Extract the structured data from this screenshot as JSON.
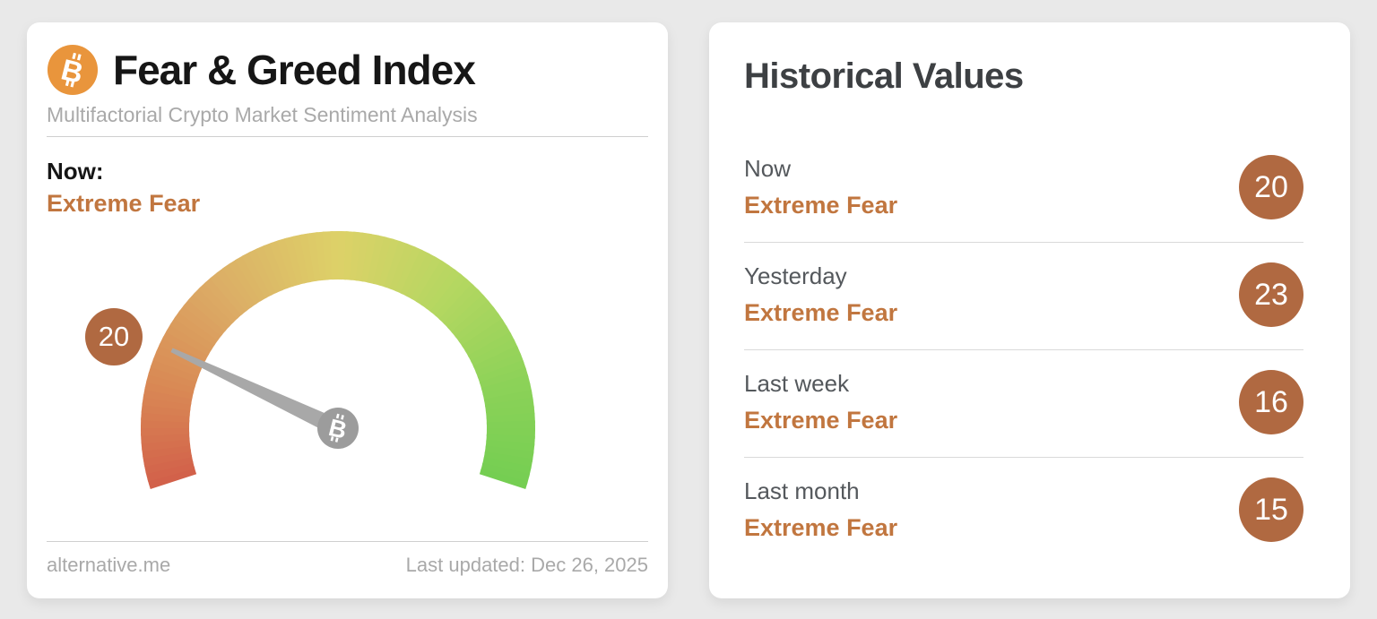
{
  "theme": {
    "page_bg": "#e9e9e9",
    "btc_orange": "#e9953c",
    "sentiment": "#c1763f",
    "badge": "#b06941",
    "needle": "#a8a8a8",
    "hub": "#9c9c9c"
  },
  "fng_card": {
    "title": "Fear & Greed Index",
    "subtitle": "Multifactorial Crypto Market Sentiment Analysis",
    "now_label": "Now:",
    "now_sentiment": "Extreme Fear",
    "source": "alternative.me",
    "last_updated": "Last updated: Dec 26, 2025"
  },
  "chart_data": {
    "type": "gauge",
    "title": "Fear & Greed Index",
    "value": 20,
    "min": 0,
    "max": 100,
    "classification": "Extreme Fear",
    "start_angle_deg": 198,
    "end_angle_deg": -18,
    "color_stops": [
      [
        0.0,
        "#d2604a"
      ],
      [
        0.15,
        "#d98a55"
      ],
      [
        0.32,
        "#dcae66"
      ],
      [
        0.5,
        "#ddd168"
      ],
      [
        0.68,
        "#b5d761"
      ],
      [
        0.85,
        "#8cd258"
      ],
      [
        1.0,
        "#74ce52"
      ]
    ],
    "needle_color": "#a8a8a8",
    "hub_color": "#9c9c9c"
  },
  "historical_card": {
    "title": "Historical Values",
    "rows": [
      {
        "label": "Now",
        "classification": "Extreme Fear",
        "value": "20"
      },
      {
        "label": "Yesterday",
        "classification": "Extreme Fear",
        "value": "23"
      },
      {
        "label": "Last week",
        "classification": "Extreme Fear",
        "value": "16"
      },
      {
        "label": "Last month",
        "classification": "Extreme Fear",
        "value": "15"
      }
    ]
  }
}
